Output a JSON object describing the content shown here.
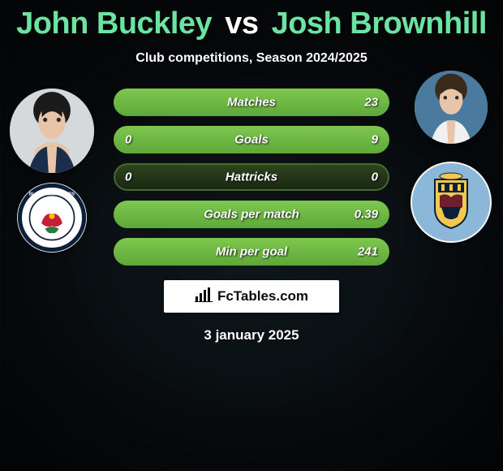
{
  "title": {
    "player1": "John Buckley",
    "vs": "vs",
    "player2": "Josh Brownhill",
    "player1_color": "#6be3a2",
    "player2_color": "#6be3a2",
    "vs_color": "#ffffff"
  },
  "subtitle": "Club competitions, Season 2024/2025",
  "branding": {
    "text": "FcTables.com"
  },
  "date": "3 january 2025",
  "bar_style": {
    "track_gradient_top": "#2d441f",
    "track_gradient_bottom": "#1a2812",
    "border_color": "#4a6b2f",
    "fill_gradient_top": "#7ec850",
    "fill_gradient_bottom": "#5da838",
    "label_color": "#ffffff"
  },
  "stats": [
    {
      "label": "Matches",
      "left_val": "",
      "right_val": "23",
      "left_pct": 0,
      "right_pct": 100
    },
    {
      "label": "Goals",
      "left_val": "0",
      "right_val": "9",
      "left_pct": 0,
      "right_pct": 100
    },
    {
      "label": "Hattricks",
      "left_val": "0",
      "right_val": "0",
      "left_pct": 0,
      "right_pct": 0
    },
    {
      "label": "Goals per match",
      "left_val": "",
      "right_val": "0.39",
      "left_pct": 0,
      "right_pct": 100
    },
    {
      "label": "Min per goal",
      "left_val": "",
      "right_val": "241",
      "left_pct": 0,
      "right_pct": 100
    }
  ],
  "left_side": {
    "avatar_name": "player-john-buckley-avatar",
    "crest_name": "blackburn-rovers-crest"
  },
  "right_side": {
    "avatar_name": "player-josh-brownhill-avatar",
    "crest_name": "burnley-crest"
  }
}
